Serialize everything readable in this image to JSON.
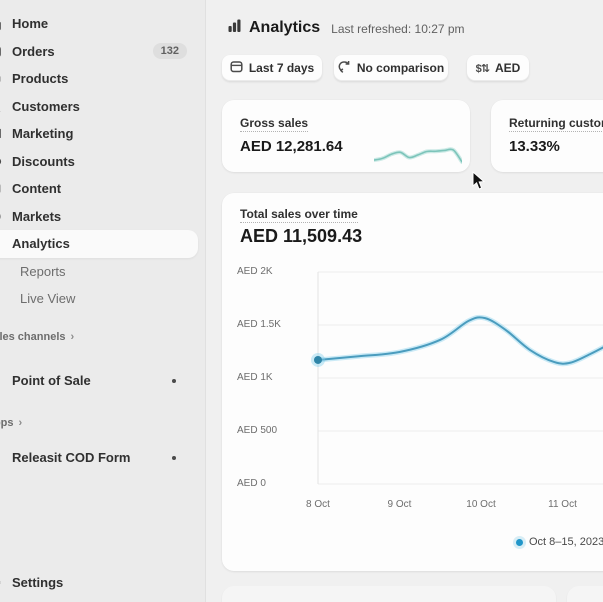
{
  "sidebar": {
    "items": [
      {
        "label": "Home"
      },
      {
        "label": "Orders",
        "badge": "132"
      },
      {
        "label": "Products"
      },
      {
        "label": "Customers"
      },
      {
        "label": "Marketing"
      },
      {
        "label": "Discounts"
      },
      {
        "label": "Content"
      },
      {
        "label": "Markets"
      },
      {
        "label": "Analytics"
      },
      {
        "label": "Reports"
      },
      {
        "label": "Live View"
      }
    ],
    "sales_channels_heading": "Sales channels",
    "point_of_sale": "Point of Sale",
    "apps_heading": "Apps",
    "app_item": "Releasit COD Form",
    "settings": "Settings"
  },
  "header": {
    "title": "Analytics",
    "last_refreshed": "Last refreshed: 10:27 pm"
  },
  "filters": {
    "date_range": "Last 7 days",
    "comparison": "No comparison",
    "currency": "AED",
    "currency_icon_glyph": "$⇅"
  },
  "metrics": [
    {
      "title": "Gross sales",
      "value": "AED 12,281.64"
    },
    {
      "title": "Returning customer rate",
      "value": "13.33%"
    }
  ],
  "chart_data": {
    "type": "line",
    "title": "Total sales over time",
    "total": "AED 11,509.43",
    "ylabel": "AED",
    "ylim": [
      0,
      2000
    ],
    "grid": true,
    "legend_position": "bottom-right",
    "y_tick_labels": [
      "AED 2K",
      "AED 1.5K",
      "AED 1K",
      "AED 500",
      "AED 0"
    ],
    "y_tick_values": [
      2000,
      1500,
      1000,
      500,
      0
    ],
    "x_tick_labels": [
      "8 Oct",
      "9 Oct",
      "10 Oct",
      "11 Oct"
    ],
    "x_tick_days": [
      0,
      1,
      2,
      3
    ],
    "series": [
      {
        "name": "Oct 8–15, 2023",
        "color": "#4a9cbe",
        "glow": "rgba(125,205,235,0.40)",
        "dot_color": "#2f85a8",
        "points": [
          [
            0,
            1170
          ],
          [
            0.5,
            1205
          ],
          [
            1,
            1245
          ],
          [
            1.5,
            1360
          ],
          [
            1.85,
            1540
          ],
          [
            2.05,
            1565
          ],
          [
            2.3,
            1455
          ],
          [
            2.6,
            1265
          ],
          [
            2.9,
            1150
          ],
          [
            3.1,
            1145
          ],
          [
            3.35,
            1230
          ],
          [
            3.6,
            1330
          ]
        ]
      }
    ],
    "sparkline": {
      "name": "Gross sales trend",
      "color": "#7cc4ba",
      "glow": "rgba(130,205,195,0.40)",
      "values": [
        15,
        22,
        38,
        45,
        25,
        35,
        48,
        49,
        52,
        54,
        8
      ]
    },
    "legend_dot_color": "#2196c9"
  }
}
